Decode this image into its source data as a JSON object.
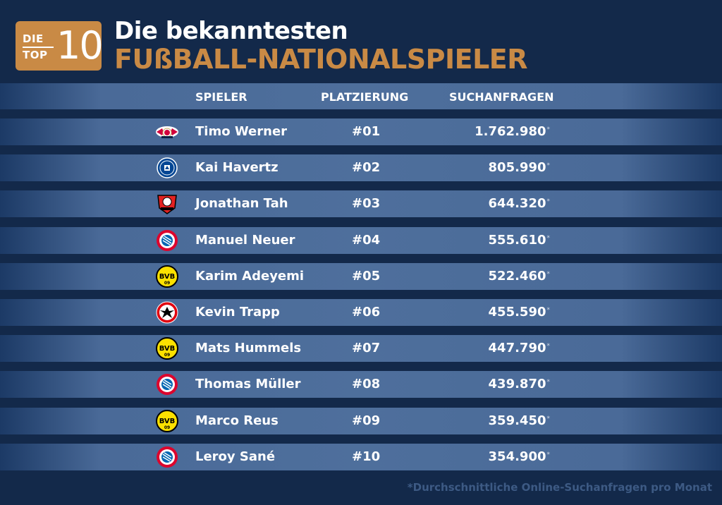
{
  "badge": {
    "die": "DIE",
    "top": "TOP",
    "number": "10"
  },
  "title": {
    "line1": "Die bekanntesten",
    "line2": "FUßBALL-NATIONALSPIELER"
  },
  "colors": {
    "accent": "#c98a45",
    "background": "#13294a",
    "band": "#4e6f9c"
  },
  "table": {
    "headers": {
      "player": "SPIELER",
      "rank": "PLATZIERUNG",
      "searches": "SUCHANFRAGEN"
    },
    "rows": [
      {
        "club_logo": "rb-leipzig-logo",
        "name": "Timo Werner",
        "rank": "#01",
        "searches": "1.762.980",
        "mark": "*"
      },
      {
        "club_logo": "chelsea-logo",
        "name": "Kai Havertz",
        "rank": "#02",
        "searches": "805.990",
        "mark": "*"
      },
      {
        "club_logo": "bayer-leverkusen-logo",
        "name": "Jonathan Tah",
        "rank": "#03",
        "searches": "644.320",
        "mark": "*"
      },
      {
        "club_logo": "fc-bayern-logo",
        "name": "Manuel Neuer",
        "rank": "#04",
        "searches": "555.610",
        "mark": "*"
      },
      {
        "club_logo": "bvb-logo",
        "name": "Karim Adeyemi",
        "rank": "#05",
        "searches": "522.460",
        "mark": "*"
      },
      {
        "club_logo": "eintracht-frankfurt-logo",
        "name": "Kevin Trapp",
        "rank": "#06",
        "searches": "455.590",
        "mark": "*"
      },
      {
        "club_logo": "bvb-logo",
        "name": "Mats Hummels",
        "rank": "#07",
        "searches": "447.790",
        "mark": "*"
      },
      {
        "club_logo": "fc-bayern-logo",
        "name": "Thomas Müller",
        "rank": "#08",
        "searches": "439.870",
        "mark": "*"
      },
      {
        "club_logo": "bvb-logo",
        "name": "Marco Reus",
        "rank": "#09",
        "searches": "359.450",
        "mark": "*"
      },
      {
        "club_logo": "fc-bayern-logo",
        "name": "Leroy Sané",
        "rank": "#10",
        "searches": "354.900",
        "mark": "*"
      }
    ]
  },
  "footnote": "*Durchschnittliche Online-Suchanfragen pro Monat"
}
